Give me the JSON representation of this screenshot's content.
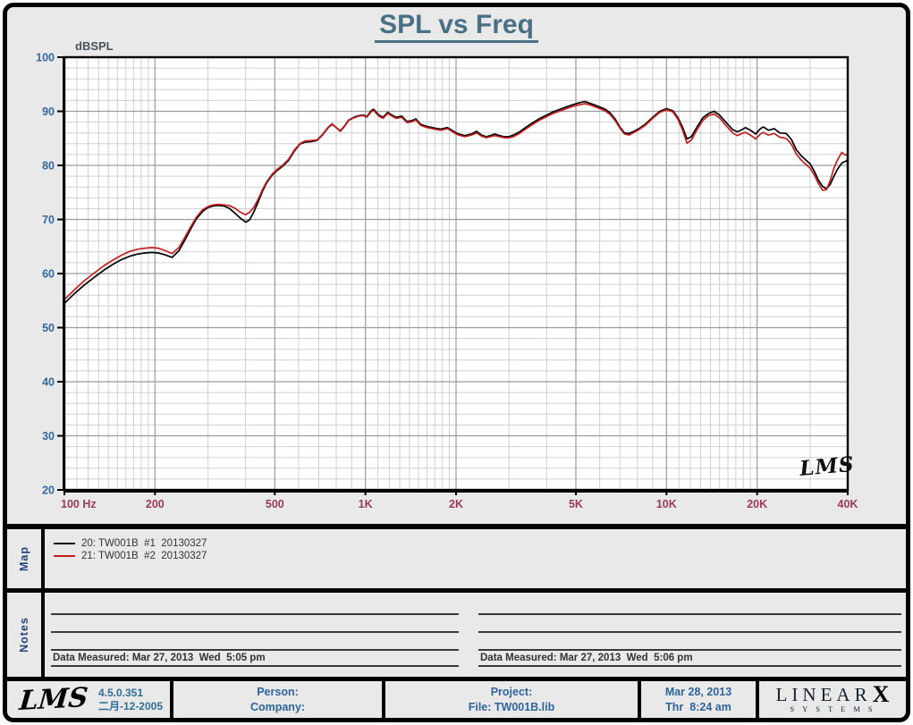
{
  "title": "SPL vs Freq",
  "chart_data": {
    "type": "line",
    "title": "SPL vs Freq",
    "ylabel": "dBSPL",
    "x_scale": "log",
    "xlim": [
      100,
      40000
    ],
    "ylim": [
      20,
      100
    ],
    "y_major_step": 10,
    "y_minor_step": 2,
    "grid": "on",
    "watermark": "LMS",
    "colors": {
      "plot_bg": "#ffffff",
      "grid_minor": "#cfcfcf",
      "grid_major": "#9c9c9c",
      "y_label": "#33689a",
      "x_label": "#993a5d"
    },
    "x_ticks": {
      "values": [
        100,
        200,
        500,
        1000,
        2000,
        5000,
        10000,
        20000,
        40000
      ],
      "labels": [
        "100  Hz",
        "200",
        "500",
        "1K",
        "2K",
        "5K",
        "10K",
        "20K",
        "40K"
      ]
    },
    "y_ticks": {
      "values": [
        100,
        90,
        80,
        70,
        60,
        50,
        40,
        30,
        20
      ],
      "labels": [
        "100",
        "90",
        "80",
        "70",
        "60",
        "50",
        "40",
        "30",
        "20"
      ]
    },
    "frequencies": [
      100,
      108,
      116,
      125,
      135,
      145,
      155,
      165,
      175,
      185,
      195,
      205,
      215,
      228,
      240,
      252,
      263,
      275,
      288,
      300,
      312,
      325,
      338,
      352,
      368,
      385,
      400,
      412,
      425,
      440,
      455,
      470,
      490,
      510,
      530,
      555,
      580,
      605,
      630,
      660,
      690,
      720,
      750,
      775,
      800,
      825,
      850,
      880,
      915,
      950,
      985,
      1010,
      1045,
      1065,
      1090,
      1115,
      1145,
      1185,
      1225,
      1265,
      1320,
      1375,
      1430,
      1470,
      1525,
      1600,
      1700,
      1780,
      1870,
      1940,
      2000,
      2070,
      2140,
      2250,
      2340,
      2430,
      2520,
      2600,
      2690,
      2790,
      2890,
      2990,
      3100,
      3250,
      3400,
      3600,
      3800,
      4000,
      4200,
      4450,
      4700,
      4950,
      5150,
      5350,
      5550,
      5750,
      6000,
      6250,
      6500,
      6750,
      7000,
      7250,
      7500,
      7800,
      8100,
      8500,
      9000,
      9500,
      10000,
      10500,
      10900,
      11300,
      11700,
      12100,
      12600,
      13200,
      13800,
      14400,
      15000,
      15800,
      16600,
      17200,
      17800,
      18300,
      19000,
      19800,
      20500,
      21000,
      21800,
      22800,
      23800,
      25000,
      26000,
      27000,
      28000,
      29000,
      30000,
      31000,
      32000,
      33000,
      34000,
      35000,
      36000,
      37000,
      38200,
      39000,
      39600,
      40000
    ],
    "series": [
      {
        "name": "20: TW001B  #1  20130327",
        "color": "#000000",
        "values": [
          54.5,
          56.3,
          57.8,
          59.2,
          60.6,
          61.7,
          62.6,
          63.2,
          63.6,
          63.8,
          63.9,
          63.8,
          63.5,
          63.0,
          64.2,
          66.3,
          68.3,
          70.2,
          71.5,
          72.2,
          72.5,
          72.6,
          72.5,
          72.1,
          71.2,
          70.2,
          69.5,
          69.9,
          71.3,
          73.2,
          75.2,
          76.8,
          78.2,
          79.1,
          79.8,
          80.9,
          82.6,
          83.9,
          84.3,
          84.4,
          84.6,
          85.6,
          86.9,
          87.6,
          87.0,
          86.4,
          87.2,
          88.4,
          88.9,
          89.2,
          89.3,
          89.0,
          90.1,
          90.4,
          89.7,
          89.2,
          88.9,
          89.8,
          89.3,
          88.9,
          89.1,
          88.1,
          88.3,
          88.6,
          87.6,
          87.2,
          86.9,
          86.7,
          87.0,
          86.5,
          86.0,
          85.7,
          85.5,
          85.8,
          86.3,
          85.6,
          85.3,
          85.5,
          85.8,
          85.5,
          85.3,
          85.3,
          85.6,
          86.2,
          87.0,
          87.9,
          88.7,
          89.3,
          89.9,
          90.4,
          90.9,
          91.3,
          91.6,
          91.8,
          91.5,
          91.2,
          90.8,
          90.4,
          89.7,
          88.6,
          87.1,
          86.0,
          85.9,
          86.3,
          86.8,
          87.6,
          88.9,
          90.0,
          90.5,
          90.1,
          88.9,
          87.1,
          84.9,
          85.3,
          87.0,
          88.8,
          89.6,
          90.0,
          89.3,
          87.9,
          86.6,
          86.2,
          86.6,
          87.0,
          86.5,
          85.8,
          86.8,
          87.1,
          86.5,
          86.8,
          86.0,
          85.9,
          84.8,
          82.9,
          81.8,
          81.0,
          80.3,
          78.9,
          77.2,
          76.1,
          75.7,
          76.5,
          78.0,
          79.3,
          80.4,
          80.7,
          80.8,
          81.2
        ]
      },
      {
        "name": "21: TW001B  #2  20130327",
        "color": "#c41e1e",
        "values": [
          55.2,
          57.0,
          58.6,
          60.0,
          61.4,
          62.5,
          63.4,
          64.1,
          64.5,
          64.7,
          64.8,
          64.7,
          64.3,
          63.7,
          64.8,
          66.8,
          68.7,
          70.5,
          71.8,
          72.4,
          72.7,
          72.8,
          72.7,
          72.6,
          72.1,
          71.3,
          70.9,
          71.3,
          72.2,
          73.7,
          75.5,
          77.0,
          78.4,
          79.3,
          80.0,
          81.1,
          82.8,
          84.0,
          84.5,
          84.6,
          84.7,
          85.7,
          87.0,
          87.7,
          87.0,
          86.3,
          87.1,
          88.3,
          88.8,
          89.1,
          89.2,
          88.9,
          89.9,
          90.2,
          89.5,
          89.0,
          88.7,
          89.6,
          89.1,
          88.7,
          88.9,
          87.9,
          88.1,
          88.4,
          87.4,
          87.0,
          86.7,
          86.5,
          86.8,
          86.3,
          85.8,
          85.5,
          85.3,
          85.6,
          86.0,
          85.4,
          85.1,
          85.3,
          85.5,
          85.3,
          85.1,
          85.1,
          85.3,
          85.9,
          86.7,
          87.6,
          88.4,
          89.0,
          89.6,
          90.1,
          90.6,
          91.0,
          91.2,
          91.4,
          91.2,
          90.9,
          90.5,
          90.1,
          89.4,
          88.3,
          86.9,
          85.8,
          85.6,
          86.1,
          86.6,
          87.4,
          88.7,
          89.8,
          90.3,
          89.9,
          88.6,
          86.6,
          84.1,
          84.7,
          86.5,
          88.3,
          89.2,
          89.5,
          88.8,
          87.3,
          86.0,
          85.5,
          85.9,
          86.1,
          85.6,
          84.9,
          85.8,
          86.1,
          85.6,
          85.9,
          85.2,
          85.0,
          83.9,
          82.1,
          81.0,
          80.2,
          79.5,
          78.2,
          76.6,
          75.4,
          75.5,
          77.2,
          79.5,
          81.0,
          82.4,
          82.0,
          81.9,
          82.2
        ]
      }
    ]
  },
  "map_panel": {
    "label": "Map",
    "entries": [
      {
        "label": "20: TW001B  #1  20130327",
        "color": "#000000"
      },
      {
        "label": "21: TW001B  #2  20130327",
        "color": "#c41e1e"
      }
    ]
  },
  "notes_panel": {
    "label": "Notes",
    "left_measured": "Data Measured: Mar 27, 2013  Wed  5:05 pm",
    "right_measured": "Data Measured: Mar 27, 2013  Wed  5:06 pm"
  },
  "footer": {
    "logo": "LMS",
    "version": "4.5.0.351",
    "build_date": "二月-12-2005",
    "person_label": "Person:",
    "company_label": "Company:",
    "project_label": "Project:",
    "file_label": "File: TW001B.lib",
    "date": "Mar 28, 2013",
    "day_time": "Thr  8:24 am",
    "brand": {
      "linear": "LINEAR",
      "x": "X",
      "systems": "SYSTEMS"
    }
  }
}
